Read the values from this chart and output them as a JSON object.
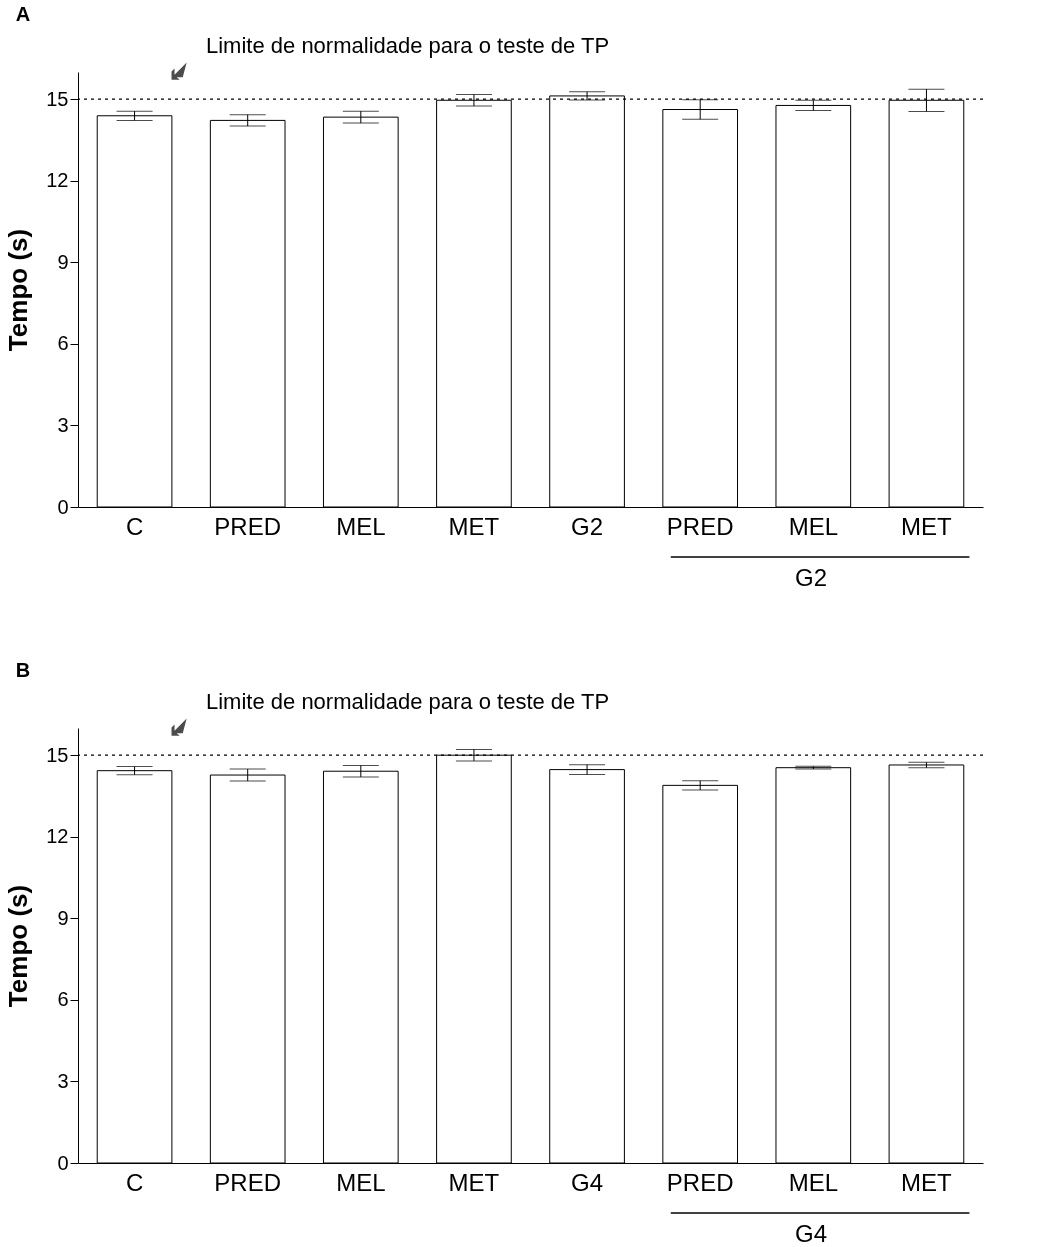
{
  "chart_data": [
    {
      "type": "bar",
      "title": "A",
      "categories": [
        "C",
        "PRED",
        "MEL",
        "MET",
        "G2",
        "PRED",
        "MEL",
        "MET"
      ],
      "values": [
        14.39,
        14.22,
        14.34,
        14.96,
        15.12,
        14.62,
        14.77,
        14.96
      ],
      "errors": [
        0.17,
        0.21,
        0.22,
        0.21,
        0.15,
        0.36,
        0.19,
        0.41
      ],
      "color": "#ffffff",
      "ylabel": "Tempo (s)",
      "ylim": [
        0,
        16
      ],
      "yticks": [
        0,
        3,
        6,
        9,
        12,
        15
      ],
      "ref_lines": [
        {
          "axis": "y",
          "value": 15,
          "label": "Limite de normalidade para o teste de TP",
          "line_style": "dotted",
          "color": "#000000"
        }
      ],
      "annotations": [
        "G2"
      ],
      "grid": false
    },
    {
      "type": "bar",
      "title": "B",
      "categories": [
        "C",
        "PRED",
        "MEL",
        "MET",
        "G4",
        "PRED",
        "MEL",
        "MET"
      ],
      "values": [
        14.43,
        14.27,
        14.41,
        15.0,
        14.47,
        13.89,
        14.54,
        14.64
      ],
      "errors": [
        0.15,
        0.22,
        0.21,
        0.21,
        0.18,
        0.17,
        0.05,
        0.1
      ],
      "color": "#ffffff",
      "ylabel": "Tempo (s)",
      "ylim": [
        0,
        16
      ],
      "yticks": [
        0,
        3,
        6,
        9,
        12,
        15
      ],
      "ref_lines": [
        {
          "axis": "y",
          "value": 15,
          "label": "Limite de normalidade para o teste de TP",
          "line_style": "dotted",
          "color": "#000000"
        }
      ],
      "annotations": [
        "G4"
      ],
      "grid": false
    }
  ]
}
